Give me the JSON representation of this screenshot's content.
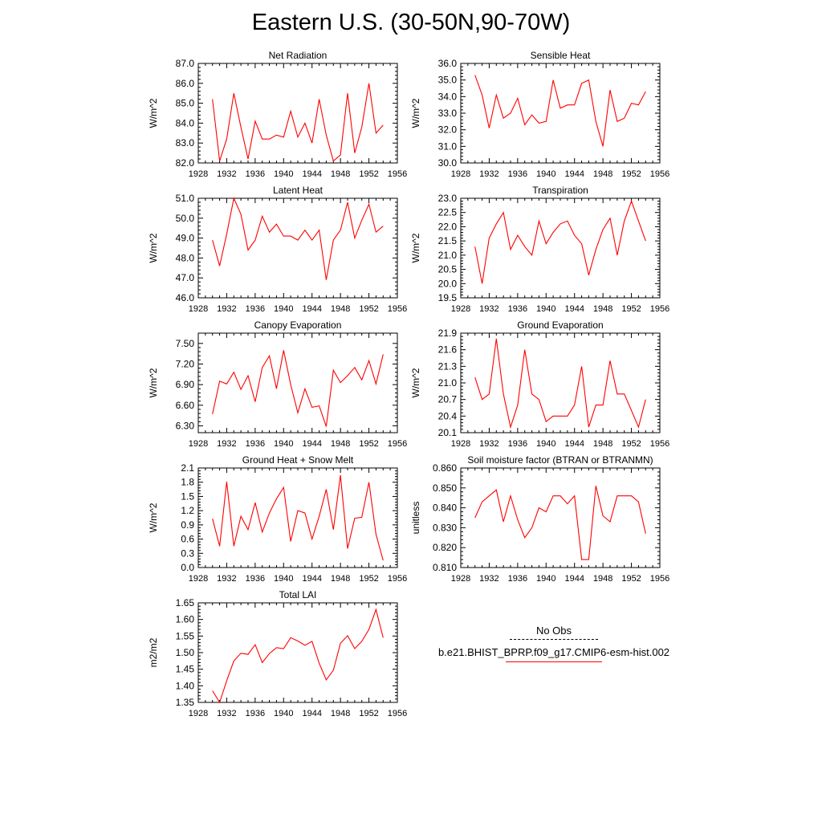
{
  "title": "Eastern U.S. (30-50N,90-70W)",
  "colors": {
    "model_line": "#ff0000",
    "axis": "#000000"
  },
  "legend": {
    "obs_label": "No Obs",
    "model_label": "b.e21.BHIST_BPRP.f09_g17.CMIP6-esm-hist.002"
  },
  "chart_data": [
    {
      "type": "line",
      "title": "Net Radiation",
      "ylabel": "W/m^2",
      "xlim": [
        1928,
        1956
      ],
      "ylim": [
        82.0,
        87.0
      ],
      "xticks": [
        1928,
        1932,
        1936,
        1940,
        1944,
        1948,
        1952,
        1956
      ],
      "yticks": [
        "82.0",
        "83.0",
        "84.0",
        "85.0",
        "86.0",
        "87.0"
      ],
      "grid": false,
      "series": [
        {
          "x": [
            1930,
            1931,
            1932,
            1933,
            1934,
            1935,
            1936,
            1937,
            1938,
            1939,
            1940,
            1941,
            1942,
            1943,
            1944,
            1945,
            1946,
            1947,
            1948,
            1949,
            1950,
            1951,
            1952,
            1953,
            1954
          ],
          "values": [
            85.2,
            82.1,
            83.2,
            85.5,
            83.8,
            82.2,
            84.1,
            83.2,
            83.2,
            83.4,
            83.3,
            84.6,
            83.3,
            84.0,
            83.0,
            85.2,
            83.4,
            82.1,
            82.4,
            85.5,
            82.5,
            83.8,
            86.0,
            83.5,
            83.9
          ]
        }
      ]
    },
    {
      "type": "line",
      "title": "Sensible Heat",
      "ylabel": "W/m^2",
      "xlim": [
        1928,
        1956
      ],
      "ylim": [
        30.0,
        36.0
      ],
      "xticks": [
        1928,
        1932,
        1936,
        1940,
        1944,
        1948,
        1952,
        1956
      ],
      "yticks": [
        "30.0",
        "31.0",
        "32.0",
        "33.0",
        "34.0",
        "35.0",
        "36.0"
      ],
      "grid": false,
      "series": [
        {
          "x": [
            1930,
            1931,
            1932,
            1933,
            1934,
            1935,
            1936,
            1937,
            1938,
            1939,
            1940,
            1941,
            1942,
            1943,
            1944,
            1945,
            1946,
            1947,
            1948,
            1949,
            1950,
            1951,
            1952,
            1953,
            1954
          ],
          "values": [
            35.3,
            34.1,
            32.1,
            34.1,
            32.7,
            33.0,
            33.9,
            32.3,
            32.9,
            32.4,
            32.5,
            35.0,
            33.3,
            33.5,
            33.5,
            34.8,
            35.0,
            32.5,
            31.0,
            34.4,
            32.5,
            32.7,
            33.6,
            33.5,
            34.3
          ]
        }
      ]
    },
    {
      "type": "line",
      "title": "Latent Heat",
      "ylabel": "W/m^2",
      "xlim": [
        1928,
        1956
      ],
      "ylim": [
        46.0,
        51.0
      ],
      "xticks": [
        1928,
        1932,
        1936,
        1940,
        1944,
        1948,
        1952,
        1956
      ],
      "yticks": [
        "46.0",
        "47.0",
        "48.0",
        "49.0",
        "50.0",
        "51.0"
      ],
      "grid": false,
      "series": [
        {
          "x": [
            1930,
            1931,
            1932,
            1933,
            1934,
            1935,
            1936,
            1937,
            1938,
            1939,
            1940,
            1941,
            1942,
            1943,
            1944,
            1945,
            1946,
            1947,
            1948,
            1949,
            1950,
            1951,
            1952,
            1953,
            1954
          ],
          "values": [
            48.9,
            47.6,
            49.2,
            51.0,
            50.2,
            48.4,
            48.9,
            50.1,
            49.3,
            49.7,
            49.1,
            49.1,
            48.9,
            49.4,
            48.9,
            49.4,
            46.9,
            48.9,
            49.4,
            50.8,
            49.0,
            49.9,
            50.7,
            49.3,
            49.6
          ]
        }
      ]
    },
    {
      "type": "line",
      "title": "Transpiration",
      "ylabel": "W/m^2",
      "xlim": [
        1928,
        1956
      ],
      "ylim": [
        19.5,
        23.0
      ],
      "xticks": [
        1928,
        1932,
        1936,
        1940,
        1944,
        1948,
        1952,
        1956
      ],
      "yticks": [
        "19.5",
        "20.0",
        "20.5",
        "21.0",
        "21.5",
        "22.0",
        "22.5",
        "23.0"
      ],
      "grid": false,
      "series": [
        {
          "x": [
            1930,
            1931,
            1932,
            1933,
            1934,
            1935,
            1936,
            1937,
            1938,
            1939,
            1940,
            1941,
            1942,
            1943,
            1944,
            1945,
            1946,
            1947,
            1948,
            1949,
            1950,
            1951,
            1952,
            1953,
            1954
          ],
          "values": [
            21.3,
            20.0,
            21.6,
            22.1,
            22.5,
            21.2,
            21.7,
            21.3,
            21.0,
            22.2,
            21.4,
            21.8,
            22.1,
            22.2,
            21.7,
            21.4,
            20.3,
            21.2,
            21.9,
            22.3,
            21.0,
            22.2,
            22.9,
            22.2,
            21.5
          ]
        }
      ]
    },
    {
      "type": "line",
      "title": "Canopy Evaporation",
      "ylabel": "W/m^2",
      "xlim": [
        1928,
        1956
      ],
      "ylim": [
        6.2,
        7.65
      ],
      "xticks": [
        1928,
        1932,
        1936,
        1940,
        1944,
        1948,
        1952,
        1956
      ],
      "yticks": [
        "6.30",
        "6.60",
        "6.90",
        "7.20",
        "7.50"
      ],
      "grid": false,
      "series": [
        {
          "x": [
            1930,
            1931,
            1932,
            1933,
            1934,
            1935,
            1936,
            1937,
            1938,
            1939,
            1940,
            1941,
            1942,
            1943,
            1944,
            1945,
            1946,
            1947,
            1948,
            1949,
            1950,
            1951,
            1952,
            1953,
            1954
          ],
          "values": [
            6.47,
            6.95,
            6.91,
            7.08,
            6.83,
            7.03,
            6.65,
            7.15,
            7.32,
            6.84,
            7.4,
            6.9,
            6.49,
            6.84,
            6.57,
            6.59,
            6.29,
            7.11,
            6.93,
            7.03,
            7.15,
            6.97,
            7.25,
            6.91,
            7.34
          ]
        }
      ]
    },
    {
      "type": "line",
      "title": "Ground Evaporation",
      "ylabel": "W/m^2",
      "xlim": [
        1928,
        1956
      ],
      "ylim": [
        20.1,
        21.9
      ],
      "xticks": [
        1928,
        1932,
        1936,
        1940,
        1944,
        1948,
        1952,
        1956
      ],
      "yticks": [
        "20.1",
        "20.4",
        "20.7",
        "21.0",
        "21.3",
        "21.6",
        "21.9"
      ],
      "grid": false,
      "series": [
        {
          "x": [
            1930,
            1931,
            1932,
            1933,
            1934,
            1935,
            1936,
            1937,
            1938,
            1939,
            1940,
            1941,
            1942,
            1943,
            1944,
            1945,
            1946,
            1947,
            1948,
            1949,
            1950,
            1951,
            1952,
            1953,
            1954
          ],
          "values": [
            21.1,
            20.7,
            20.8,
            21.8,
            20.8,
            20.2,
            20.6,
            21.6,
            20.8,
            20.7,
            20.3,
            20.4,
            20.4,
            20.4,
            20.6,
            21.3,
            20.2,
            20.6,
            20.6,
            21.4,
            20.8,
            20.8,
            20.5,
            20.2,
            20.7
          ]
        }
      ]
    },
    {
      "type": "line",
      "title": "Ground Heat + Snow Melt",
      "ylabel": "W/m^2",
      "xlim": [
        1928,
        1956
      ],
      "ylim": [
        0.0,
        2.1
      ],
      "xticks": [
        1928,
        1932,
        1936,
        1940,
        1944,
        1948,
        1952,
        1956
      ],
      "yticks": [
        "0.0",
        "0.3",
        "0.6",
        "0.9",
        "1.2",
        "1.5",
        "1.8",
        "2.1"
      ],
      "grid": false,
      "series": [
        {
          "x": [
            1930,
            1931,
            1932,
            1933,
            1934,
            1935,
            1936,
            1937,
            1938,
            1939,
            1940,
            1941,
            1942,
            1943,
            1944,
            1945,
            1946,
            1947,
            1948,
            1949,
            1950,
            1951,
            1952,
            1953,
            1954
          ],
          "values": [
            1.03,
            0.45,
            1.81,
            0.45,
            1.08,
            0.8,
            1.37,
            0.75,
            1.15,
            1.45,
            1.69,
            0.55,
            1.2,
            1.15,
            0.6,
            1.08,
            1.65,
            0.8,
            1.95,
            0.4,
            1.04,
            1.06,
            1.8,
            0.7,
            0.15
          ]
        }
      ]
    },
    {
      "type": "line",
      "title": "Soil moisture factor (BTRAN or BTRANMN)",
      "ylabel": "unitless",
      "xlim": [
        1928,
        1956
      ],
      "ylim": [
        0.81,
        0.86
      ],
      "xticks": [
        1928,
        1932,
        1936,
        1940,
        1944,
        1948,
        1952,
        1956
      ],
      "yticks": [
        "0.810",
        "0.820",
        "0.830",
        "0.840",
        "0.850",
        "0.860"
      ],
      "grid": false,
      "series": [
        {
          "x": [
            1930,
            1931,
            1932,
            1933,
            1934,
            1935,
            1936,
            1937,
            1938,
            1939,
            1940,
            1941,
            1942,
            1943,
            1944,
            1945,
            1946,
            1947,
            1948,
            1949,
            1950,
            1951,
            1952,
            1953,
            1954
          ],
          "values": [
            0.835,
            0.843,
            0.846,
            0.849,
            0.833,
            0.846,
            0.834,
            0.825,
            0.83,
            0.84,
            0.838,
            0.846,
            0.846,
            0.842,
            0.846,
            0.814,
            0.814,
            0.851,
            0.836,
            0.833,
            0.846,
            0.846,
            0.846,
            0.843,
            0.827
          ]
        }
      ]
    },
    {
      "type": "line",
      "title": "Total LAI",
      "ylabel": "m2/m2",
      "xlim": [
        1928,
        1956
      ],
      "ylim": [
        1.35,
        1.65
      ],
      "xticks": [
        1928,
        1932,
        1936,
        1940,
        1944,
        1948,
        1952,
        1956
      ],
      "yticks": [
        "1.35",
        "1.40",
        "1.45",
        "1.50",
        "1.55",
        "1.60",
        "1.65"
      ],
      "grid": false,
      "series": [
        {
          "x": [
            1930,
            1931,
            1932,
            1933,
            1934,
            1935,
            1936,
            1937,
            1938,
            1939,
            1940,
            1941,
            1942,
            1943,
            1944,
            1945,
            1946,
            1947,
            1948,
            1949,
            1950,
            1951,
            1952,
            1953,
            1954
          ],
          "values": [
            1.385,
            1.35,
            1.415,
            1.475,
            1.498,
            1.495,
            1.524,
            1.47,
            1.497,
            1.515,
            1.512,
            1.545,
            1.535,
            1.522,
            1.534,
            1.468,
            1.418,
            1.447,
            1.528,
            1.551,
            1.512,
            1.534,
            1.57,
            1.63,
            1.545
          ]
        }
      ]
    }
  ]
}
